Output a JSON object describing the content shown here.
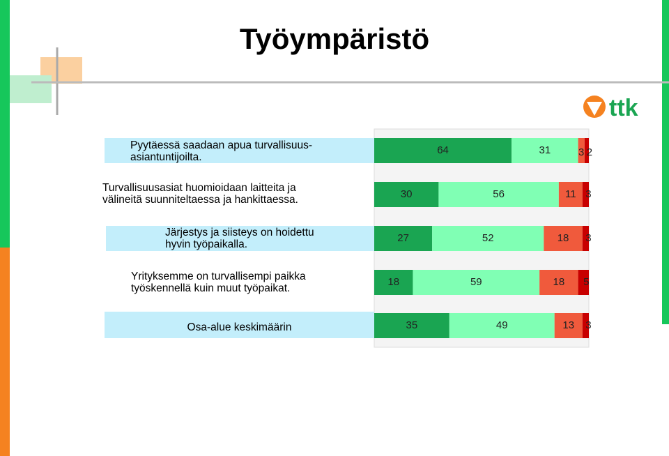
{
  "logo_text": "ttk",
  "chart_data": {
    "type": "stacked-bar-horizontal",
    "title": "Työympäristö",
    "categories": [
      "Pyytäessä saadaan apua turvallisuus-\nasiantuntijoilta.",
      "Turvallisuusasiat huomioidaan laitteita ja\nvälineitä suunniteltaessa ja hankittaessa.",
      "Järjestys ja siisteys on hoidettu\nhyvin työpaikalla.",
      "Yrityksemme on turvallisempi paikka\ntyöskennellä kuin muut työpaikat.",
      "Osa-alue keskimäärin"
    ],
    "xlim": [
      0,
      100
    ],
    "series": [
      {
        "color": "#1aa552",
        "values": [
          64,
          30,
          27,
          18,
          35
        ]
      },
      {
        "color": "#80ffb4",
        "values": [
          31,
          56,
          52,
          59,
          49
        ]
      },
      {
        "color": "#f05a3c",
        "values": [
          3,
          11,
          18,
          18,
          13
        ]
      },
      {
        "color": "#c80000",
        "values": [
          2,
          3,
          3,
          5,
          3
        ]
      }
    ]
  }
}
